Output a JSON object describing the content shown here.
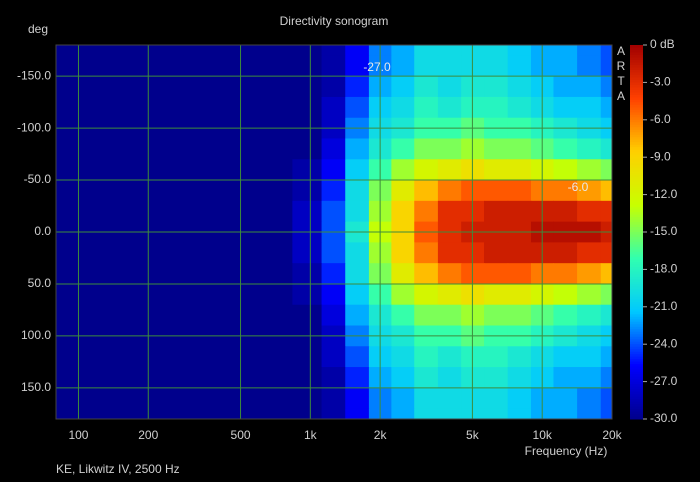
{
  "chart_data": {
    "type": "heatmap",
    "title": "Directivity sonogram",
    "y_label": "deg",
    "x_label": "Frequency (Hz)",
    "footer": "KE, Likwitz IV, 2500 Hz",
    "brand": "ARTA",
    "annotations": [
      "-27.0",
      "-6.0"
    ],
    "x_scale": "log",
    "x": [
      100,
      200,
      400,
      700,
      1000,
      1250,
      1600,
      2000,
      2500,
      3150,
      4000,
      5000,
      6300,
      8000,
      10000,
      12500,
      16000,
      20000
    ],
    "y": [
      -180,
      -160,
      -140,
      -120,
      -100,
      -80,
      -60,
      -40,
      -20,
      0,
      20,
      40,
      60,
      80,
      100,
      120,
      140,
      160,
      180
    ],
    "z": [
      [
        -30,
        -30,
        -30,
        -30,
        -30,
        -29,
        -26,
        -23,
        -22,
        -20,
        -20,
        -20,
        -20,
        -21,
        -22,
        -22,
        -23,
        -24
      ],
      [
        -30,
        -30,
        -30,
        -30,
        -30,
        -29,
        -26,
        -23,
        -22,
        -20,
        -20,
        -20,
        -20,
        -21,
        -22,
        -22,
        -23,
        -24
      ],
      [
        -30,
        -30,
        -30,
        -30,
        -30,
        -29,
        -25,
        -22,
        -21,
        -19,
        -20,
        -19,
        -19,
        -20,
        -21,
        -22,
        -22,
        -23
      ],
      [
        -30,
        -30,
        -30,
        -30,
        -30,
        -28,
        -24,
        -21,
        -20,
        -18,
        -19,
        -18,
        -18,
        -19,
        -20,
        -21,
        -21,
        -22
      ],
      [
        -30,
        -30,
        -30,
        -30,
        -30,
        -28,
        -23,
        -20,
        -19,
        -17,
        -17,
        -16,
        -17,
        -17,
        -18,
        -19,
        -20,
        -21
      ],
      [
        -30,
        -30,
        -30,
        -30,
        -30,
        -27,
        -22,
        -19,
        -17,
        -15,
        -15,
        -14,
        -15,
        -15,
        -16,
        -17,
        -18,
        -19
      ],
      [
        -30,
        -30,
        -30,
        -30,
        -29,
        -26,
        -21,
        -17,
        -14,
        -12,
        -11,
        -10,
        -11,
        -11,
        -12,
        -13,
        -14,
        -15
      ],
      [
        -30,
        -30,
        -30,
        -30,
        -29,
        -25,
        -20,
        -15,
        -11,
        -8,
        -6,
        -5,
        -5,
        -5,
        -6,
        -6,
        -7,
        -8
      ],
      [
        -30,
        -30,
        -30,
        -30,
        -28,
        -24,
        -20,
        -14,
        -9,
        -6,
        -3,
        -3,
        -2,
        -2,
        -2,
        -2,
        -3,
        -3
      ],
      [
        -30,
        -30,
        -30,
        -30,
        -28,
        -24,
        -19,
        -13,
        -9,
        -5,
        -3,
        -2,
        -2,
        -2,
        -1,
        -1,
        -1,
        -2
      ],
      [
        -30,
        -30,
        -30,
        -30,
        -28,
        -24,
        -20,
        -14,
        -9,
        -6,
        -3,
        -3,
        -2,
        -2,
        -2,
        -2,
        -3,
        -3
      ],
      [
        -30,
        -30,
        -30,
        -30,
        -29,
        -25,
        -20,
        -15,
        -11,
        -8,
        -6,
        -5,
        -5,
        -5,
        -6,
        -6,
        -7,
        -8
      ],
      [
        -30,
        -30,
        -30,
        -30,
        -29,
        -26,
        -21,
        -17,
        -14,
        -12,
        -11,
        -10,
        -11,
        -11,
        -12,
        -13,
        -14,
        -15
      ],
      [
        -30,
        -30,
        -30,
        -30,
        -30,
        -27,
        -22,
        -19,
        -17,
        -15,
        -15,
        -14,
        -15,
        -15,
        -16,
        -17,
        -18,
        -19
      ],
      [
        -30,
        -30,
        -30,
        -30,
        -30,
        -28,
        -23,
        -20,
        -19,
        -17,
        -17,
        -16,
        -17,
        -17,
        -18,
        -19,
        -20,
        -21
      ],
      [
        -30,
        -30,
        -30,
        -30,
        -30,
        -28,
        -24,
        -21,
        -20,
        -18,
        -19,
        -18,
        -18,
        -19,
        -20,
        -21,
        -21,
        -22
      ],
      [
        -30,
        -30,
        -30,
        -30,
        -30,
        -29,
        -25,
        -22,
        -21,
        -19,
        -20,
        -19,
        -19,
        -20,
        -21,
        -22,
        -22,
        -23
      ],
      [
        -30,
        -30,
        -30,
        -30,
        -30,
        -29,
        -26,
        -23,
        -22,
        -20,
        -20,
        -20,
        -20,
        -21,
        -22,
        -22,
        -23,
        -24
      ],
      [
        -30,
        -30,
        -30,
        -30,
        -30,
        -29,
        -26,
        -23,
        -22,
        -20,
        -20,
        -20,
        -20,
        -21,
        -22,
        -22,
        -23,
        -24
      ]
    ],
    "xlim": [
      80,
      20000
    ],
    "xticks": [
      100,
      200,
      500,
      {
        "value": 1000,
        "label": "1k"
      },
      {
        "value": 2000,
        "label": "2k"
      },
      {
        "value": 5000,
        "label": "5k"
      },
      {
        "value": 10000,
        "label": "10k"
      },
      {
        "value": 20000,
        "label": "20k"
      }
    ],
    "ylim": [
      -180,
      180
    ],
    "yticks": [
      {
        "value": -150,
        "label": "-150.0"
      },
      {
        "value": -100,
        "label": "-100.0"
      },
      {
        "value": -50,
        "label": "-50.0"
      },
      {
        "value": 0,
        "label": "0.0"
      },
      {
        "value": 50,
        "label": "50.0"
      },
      {
        "value": 100,
        "label": "100.0"
      },
      {
        "value": 150,
        "label": "150.0"
      }
    ],
    "zlim": [
      -30,
      0
    ],
    "zticks": [
      {
        "value": 0,
        "label": "0 dB"
      },
      {
        "value": -3,
        "label": "-3.0"
      },
      {
        "value": -6,
        "label": "-6.0"
      },
      {
        "value": -9,
        "label": "-9.0"
      },
      {
        "value": -12,
        "label": "-12.0"
      },
      {
        "value": -15,
        "label": "-15.0"
      },
      {
        "value": -18,
        "label": "-18.0"
      },
      {
        "value": -21,
        "label": "-21.0"
      },
      {
        "value": -24,
        "label": "-24.0"
      },
      {
        "value": -27,
        "label": "-27.0"
      },
      {
        "value": -30,
        "label": "-30.0"
      }
    ],
    "colormap": [
      "#00008c",
      "#0000ff",
      "#00c8ff",
      "#30ffb0",
      "#c8ff00",
      "#ffd000",
      "#ff4000",
      "#a00000"
    ],
    "grid": true,
    "grid_color": "#3c8c3c"
  }
}
